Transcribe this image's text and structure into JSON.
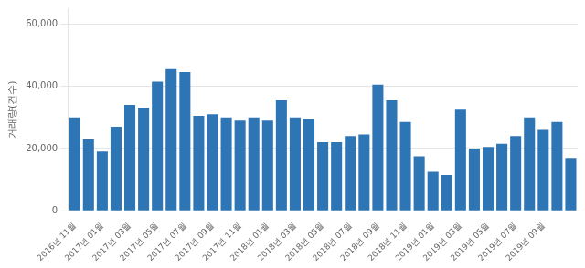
{
  "chart_data": {
    "type": "bar",
    "ylabel": "거래량(건수)",
    "categories": [
      "2016년 11월",
      null,
      "2017년 01월",
      null,
      "2017년 03월",
      null,
      "2017년 05월",
      null,
      "2017년 07월",
      null,
      "2017년 09월",
      null,
      "2017년 11월",
      null,
      "2018년 01월",
      null,
      "2018년 03월",
      null,
      "2018년 05월",
      null,
      "2018년 07월",
      null,
      "2018년 09월",
      null,
      "2018년 11월",
      null,
      "2019년 01월",
      null,
      "2019년 03월",
      null,
      "2019년 05월",
      null,
      "2019년 07월",
      null,
      "2019년 09월",
      null,
      null
    ],
    "values": [
      30000,
      23000,
      19000,
      27000,
      34000,
      33000,
      41500,
      45500,
      44500,
      30500,
      31000,
      30000,
      29000,
      30000,
      29000,
      35500,
      30000,
      29500,
      22000,
      22000,
      24000,
      24500,
      40500,
      35500,
      28500,
      17500,
      12500,
      11500,
      32500,
      20000,
      20500,
      21500,
      24000,
      30000,
      26000,
      28500,
      17000
    ],
    "color": "#2e75b6",
    "ylim": [
      0,
      65000
    ],
    "yticks": [
      0,
      {
        "value": 20000,
        "label": "20,000"
      },
      {
        "value": 40000,
        "label": "40,000"
      },
      {
        "value": 60000,
        "label": "60,000"
      }
    ],
    "grid": true
  }
}
